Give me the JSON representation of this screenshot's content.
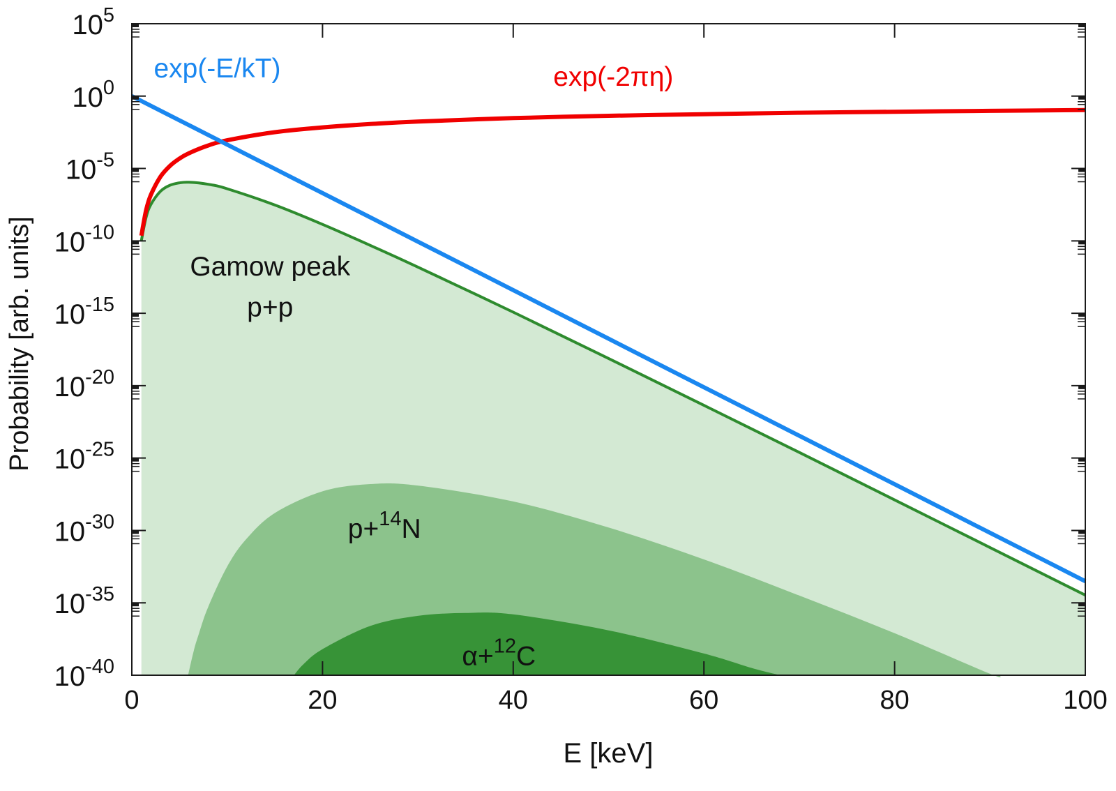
{
  "chart_data": {
    "type": "area",
    "title": "",
    "xlabel": "E [keV]",
    "ylabel": "Probability [arb. units]",
    "xscale": "linear",
    "yscale": "log",
    "xlim": [
      0,
      100
    ],
    "ylim_exponents": [
      -40,
      5
    ],
    "x_ticks": [
      "0",
      "20",
      "40",
      "60",
      "80",
      "100"
    ],
    "x_tick_values": [
      0,
      20,
      40,
      60,
      80,
      100
    ],
    "y_ticks": [
      {
        "base": "10",
        "exp": "5",
        "value_exp": 5
      },
      {
        "base": "10",
        "exp": "0",
        "value_exp": 0
      },
      {
        "base": "10",
        "exp": "-5",
        "value_exp": -5
      },
      {
        "base": "10",
        "exp": "-10",
        "value_exp": -10
      },
      {
        "base": "10",
        "exp": "-15",
        "value_exp": -15
      },
      {
        "base": "10",
        "exp": "-20",
        "value_exp": -20
      },
      {
        "base": "10",
        "exp": "-25",
        "value_exp": -25
      },
      {
        "base": "10",
        "exp": "-30",
        "value_exp": -30
      },
      {
        "base": "10",
        "exp": "-35",
        "value_exp": -35
      },
      {
        "base": "10",
        "exp": "-40",
        "value_exp": -40
      }
    ],
    "grid": false,
    "value_note": "y values given as log10(probability)",
    "series": [
      {
        "name": "exp(-E/kT)",
        "kind": "line",
        "color": "#1a87f0",
        "x": [
          0,
          10,
          20,
          30,
          40,
          50,
          60,
          70,
          80,
          90,
          100
        ],
        "log10_y": [
          0,
          -3.35,
          -6.7,
          -10.05,
          -13.4,
          -16.76,
          -20.11,
          -23.46,
          -26.81,
          -30.16,
          -33.51
        ]
      },
      {
        "name": "exp(-2πη)",
        "kind": "line",
        "color": "#f00000",
        "x": [
          1,
          1.5,
          2,
          3,
          4,
          5,
          6,
          8,
          10,
          15,
          20,
          25,
          30,
          40,
          50,
          60,
          70,
          80,
          90,
          100
        ],
        "log10_y": [
          -9.64,
          -7.87,
          -6.82,
          -5.57,
          -4.82,
          -4.31,
          -3.94,
          -3.41,
          -3.05,
          -2.49,
          -2.16,
          -1.93,
          -1.76,
          -1.52,
          -1.36,
          -1.25,
          -1.15,
          -1.08,
          -1.02,
          -0.96
        ]
      },
      {
        "name": "p+p",
        "kind": "filled-line",
        "color": "#2e8b2e",
        "fill": "#d3e9d3",
        "x": [
          1,
          1.5,
          2,
          3,
          4,
          5,
          6,
          8,
          10,
          15,
          20,
          25,
          30,
          40,
          50,
          60,
          70,
          80,
          90,
          100
        ],
        "log10_y": [
          -9.98,
          -8.37,
          -7.49,
          -6.58,
          -6.16,
          -5.99,
          -5.95,
          -6.09,
          -6.4,
          -7.52,
          -8.86,
          -10.31,
          -11.81,
          -14.92,
          -18.12,
          -21.36,
          -24.61,
          -27.89,
          -31.18,
          -34.47
        ]
      },
      {
        "name": "p+14N",
        "kind": "fill",
        "fill": "#8cc38c",
        "x": [
          5.9,
          6.5,
          7,
          8,
          10,
          12,
          15,
          20,
          25,
          30,
          40,
          50,
          60,
          70,
          80,
          90,
          91
        ],
        "log10_y": [
          -40,
          -38.3,
          -37.2,
          -35.3,
          -32.5,
          -30.6,
          -28.8,
          -27.3,
          -26.8,
          -26.9,
          -28.0,
          -29.8,
          -32.0,
          -34.5,
          -37.1,
          -39.9,
          -40
        ]
      },
      {
        "name": "α+12C",
        "kind": "fill",
        "fill": "#379337",
        "x": [
          17,
          18,
          20,
          25,
          30,
          35,
          40,
          50,
          60,
          65,
          68
        ],
        "log10_y": [
          -40,
          -39.24,
          -38.2,
          -36.6,
          -35.9,
          -35.7,
          -35.8,
          -36.9,
          -38.5,
          -39.5,
          -40
        ]
      }
    ],
    "annotations": [
      {
        "id": "blue",
        "text": "exp(-E/kT)",
        "color": "#1a87f0",
        "x": 2.3,
        "log10_y": 1.3
      },
      {
        "id": "red",
        "text": "exp(-2πη)",
        "color": "#f00000",
        "x": 50.5,
        "log10_y": 0.7
      },
      {
        "id": "gamow1",
        "text": "Gamow peak",
        "color": "#111111",
        "x": 14.5,
        "log10_y": -12.4
      },
      {
        "id": "gamow2",
        "text": "p+p",
        "color": "#111111",
        "x": 14.5,
        "log10_y": -15.2
      },
      {
        "id": "pn",
        "base": "p+",
        "sup": "14",
        "tail": "N",
        "color": "#111111",
        "x": 26.5,
        "log10_y": -30.5
      },
      {
        "id": "ac",
        "base": "α+",
        "sup": "12",
        "tail": "C",
        "color": "#111111",
        "x": 38.5,
        "log10_y": -39.3
      }
    ]
  }
}
